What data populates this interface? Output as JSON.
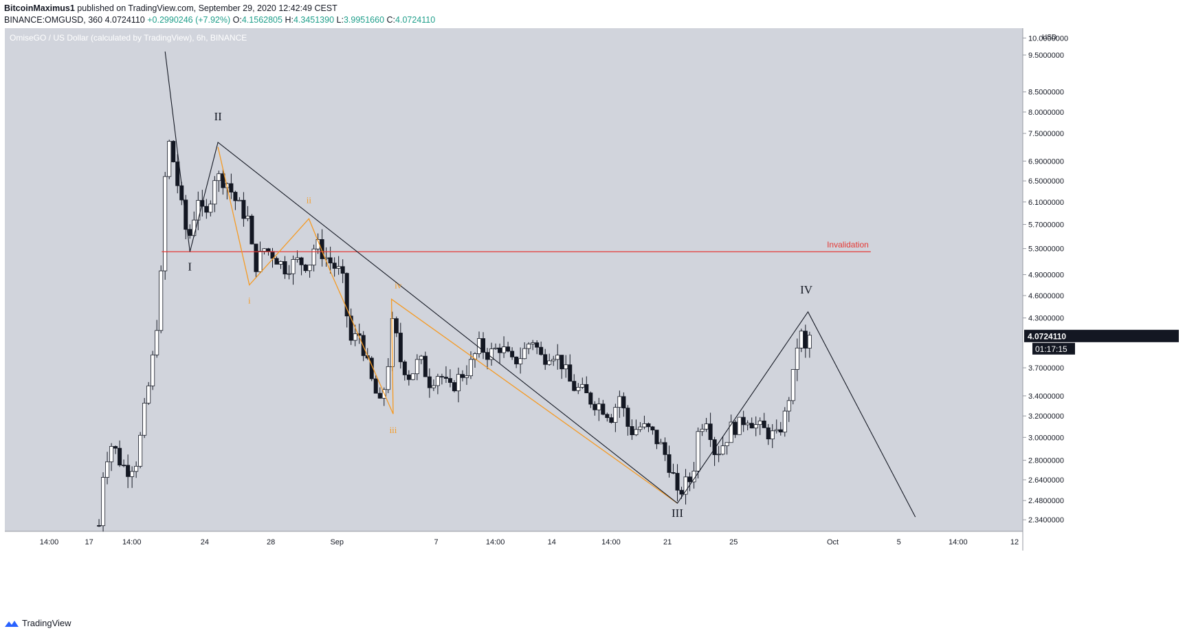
{
  "header": {
    "author": "BitcoinMaximus1",
    "published_text": "published on TradingView.com, September 29, 2020 12:42:49 CEST",
    "symbol_line": "BINANCE:OMGUSD, 360",
    "last": "4.0724110",
    "change": "+0.2990246 (+7.92%)",
    "o_label": "O:",
    "o": "4.1562805",
    "h_label": "H:",
    "h": "4.3451390",
    "l_label": "L:",
    "l": "3.9951660",
    "c_label": "C:",
    "c": "4.0724110"
  },
  "footer": {
    "brand": "TradingView",
    "logo_icon": "tradingview-logo-icon"
  },
  "colors": {
    "background": "#d1d4dc",
    "candle_up": "#ffffff",
    "candle_down": "#131722",
    "invalidation": "#e53935",
    "orange": "#f59a23",
    "price_tag": "#131722"
  },
  "chart_data": {
    "type": "candlestick",
    "title": "OmiseGO / US Dollar (calculated by TradingView), 6h, BINANCE",
    "currency": "USD",
    "price_scale": "log",
    "ylim": [
      2.26,
      10.3
    ],
    "y_ticks": [
      "10.0000000",
      "9.5000000",
      "8.5000000",
      "8.0000000",
      "7.5000000",
      "6.9000000",
      "6.5000000",
      "6.1000000",
      "5.7000000",
      "5.3000000",
      "4.9000000",
      "4.6000000",
      "4.3000000",
      "3.7000000",
      "3.4000000",
      "3.2000000",
      "3.0000000",
      "2.8000000",
      "2.6400000",
      "2.4800000",
      "2.3400000"
    ],
    "x_ticks": [
      {
        "label": "14:00",
        "day": 14.583
      },
      {
        "label": "17",
        "day": 17
      },
      {
        "label": "14:00",
        "day": 19.583
      },
      {
        "label": "24",
        "day": 24
      },
      {
        "label": "28",
        "day": 28
      },
      {
        "label": "Sep",
        "day": 32
      },
      {
        "label": "7",
        "day": 38
      },
      {
        "label": "14:00",
        "day": 41.583
      },
      {
        "label": "14",
        "day": 45
      },
      {
        "label": "14:00",
        "day": 48.583
      },
      {
        "label": "21",
        "day": 52
      },
      {
        "label": "25",
        "day": 56
      },
      {
        "label": "Oct",
        "day": 62
      },
      {
        "label": "5",
        "day": 66
      },
      {
        "label": "14:00",
        "day": 69.583
      },
      {
        "label": "12",
        "day": 73
      }
    ],
    "x_unit": "days since Aug 1 2020",
    "xlim": [
      11.9,
      73.5
    ],
    "last_price": "4.0724110",
    "countdown": "01:17:15",
    "invalidation": {
      "label": "Invalidation",
      "price": 5.25,
      "from_day": 21.4,
      "to_day": 64.3
    },
    "wave_black": [
      [
        21.6,
        9.6
      ],
      [
        23.1,
        5.25
      ],
      [
        24.8,
        7.3
      ],
      [
        52.6,
        2.46
      ],
      [
        60.5,
        4.38
      ],
      [
        67.0,
        2.36
      ]
    ],
    "wave_orange": [
      [
        24.8,
        7.2
      ],
      [
        26.7,
        4.75
      ],
      [
        30.3,
        5.8
      ],
      [
        31.6,
        4.95
      ],
      [
        35.4,
        3.22
      ],
      [
        35.3,
        4.55
      ],
      [
        52.6,
        2.46
      ]
    ],
    "wave_labels": [
      {
        "text": "I",
        "day": 23.1,
        "price": 4.96,
        "color": "black"
      },
      {
        "text": "II",
        "day": 24.8,
        "price": 7.8,
        "color": "black"
      },
      {
        "text": "III",
        "day": 52.6,
        "price": 2.36,
        "color": "black"
      },
      {
        "text": "IV",
        "day": 60.4,
        "price": 4.63,
        "color": "black"
      },
      {
        "text": "i",
        "day": 26.7,
        "price": 4.49,
        "color": "orange"
      },
      {
        "text": "ii",
        "day": 30.3,
        "price": 6.08,
        "color": "orange"
      },
      {
        "text": "iii",
        "day": 35.4,
        "price": 3.04,
        "color": "orange"
      },
      {
        "text": "iv",
        "day": 35.7,
        "price": 4.7,
        "color": "orange"
      }
    ],
    "close_keypoints": [
      [
        17.6,
        2.3
      ],
      [
        17.9,
        2.78
      ],
      [
        18.4,
        2.95
      ],
      [
        18.9,
        2.78
      ],
      [
        19.3,
        2.72
      ],
      [
        19.9,
        2.8
      ],
      [
        20.3,
        3.2
      ],
      [
        20.7,
        3.6
      ],
      [
        21.0,
        4.0
      ],
      [
        21.4,
        5.0
      ],
      [
        21.7,
        7.5
      ],
      [
        22.1,
        6.9
      ],
      [
        22.6,
        6.0
      ],
      [
        23.0,
        5.4
      ],
      [
        23.6,
        6.2
      ],
      [
        24.0,
        5.7
      ],
      [
        24.6,
        6.6
      ],
      [
        25.3,
        6.5
      ],
      [
        25.9,
        6.1
      ],
      [
        26.6,
        5.8
      ],
      [
        27.0,
        5.0
      ],
      [
        27.6,
        5.3
      ],
      [
        28.2,
        5.2
      ],
      [
        28.8,
        5.0
      ],
      [
        29.6,
        5.1
      ],
      [
        30.3,
        5.05
      ],
      [
        30.7,
        5.4
      ],
      [
        31.2,
        5.2
      ],
      [
        31.9,
        5.0
      ],
      [
        32.3,
        4.9
      ],
      [
        32.8,
        4.0
      ],
      [
        33.4,
        4.1
      ],
      [
        34.0,
        3.6
      ],
      [
        34.6,
        3.3
      ],
      [
        35.0,
        3.6
      ],
      [
        35.4,
        4.3
      ],
      [
        35.8,
        3.8
      ],
      [
        36.4,
        3.6
      ],
      [
        37.0,
        3.8
      ],
      [
        37.6,
        3.55
      ],
      [
        38.2,
        3.65
      ],
      [
        38.8,
        3.45
      ],
      [
        39.4,
        3.6
      ],
      [
        40.0,
        3.7
      ],
      [
        40.6,
        3.95
      ],
      [
        41.2,
        3.85
      ],
      [
        41.9,
        3.95
      ],
      [
        42.6,
        3.75
      ],
      [
        43.2,
        3.85
      ],
      [
        43.8,
        4.05
      ],
      [
        44.4,
        3.8
      ],
      [
        45.0,
        3.9
      ],
      [
        45.6,
        3.75
      ],
      [
        46.2,
        3.5
      ],
      [
        46.8,
        3.45
      ],
      [
        47.4,
        3.35
      ],
      [
        48.0,
        3.3
      ],
      [
        48.6,
        3.2
      ],
      [
        49.1,
        3.4
      ],
      [
        49.7,
        3.05
      ],
      [
        50.4,
        3.1
      ],
      [
        51.0,
        3.05
      ],
      [
        51.7,
        2.9
      ],
      [
        52.3,
        2.7
      ],
      [
        52.6,
        2.5
      ],
      [
        53.0,
        2.6
      ],
      [
        53.5,
        2.65
      ],
      [
        53.9,
        3.1
      ],
      [
        54.4,
        3.2
      ],
      [
        54.9,
        2.85
      ],
      [
        55.4,
        2.95
      ],
      [
        55.9,
        3.1
      ],
      [
        56.3,
        3.1
      ],
      [
        56.8,
        3.2
      ],
      [
        57.4,
        3.1
      ],
      [
        58.0,
        3.05
      ],
      [
        58.6,
        3.0
      ],
      [
        59.1,
        3.2
      ],
      [
        59.6,
        3.6
      ],
      [
        60.0,
        4.2
      ],
      [
        60.3,
        3.85
      ],
      [
        60.6,
        4.07
      ]
    ]
  }
}
